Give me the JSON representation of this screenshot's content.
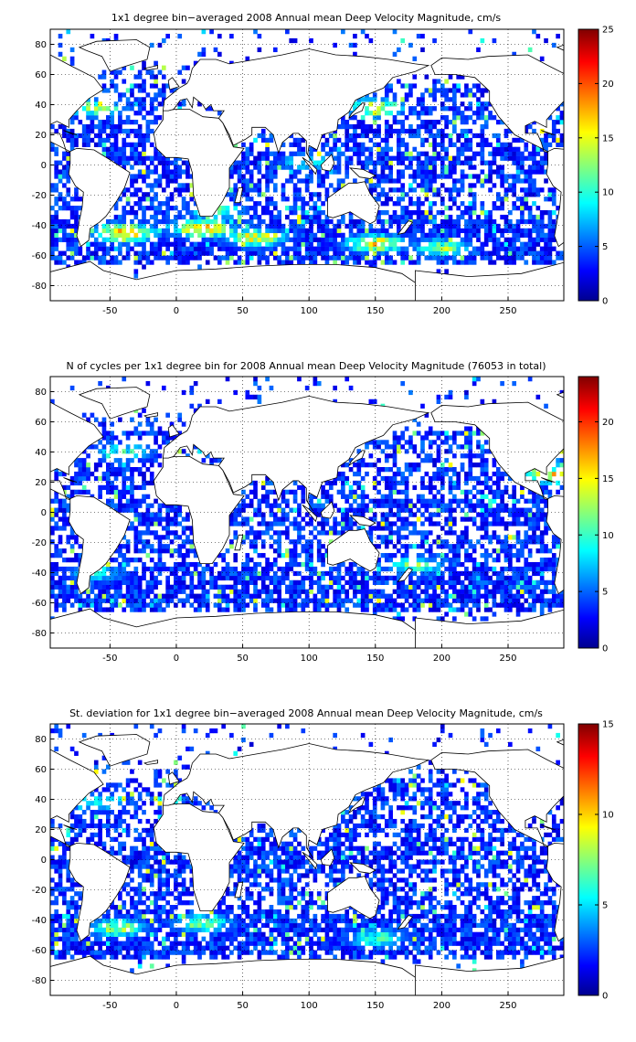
{
  "chart_data": [
    {
      "type": "heatmap",
      "title": "1x1 degree bin−averaged 2008 Annual mean Deep Velocity Magnitude, cm/s",
      "xlabel": "",
      "ylabel": "",
      "xlim": [
        -95,
        292
      ],
      "ylim": [
        -90,
        90
      ],
      "x_ticks": [
        -50,
        0,
        50,
        100,
        150,
        200,
        250
      ],
      "y_ticks": [
        80,
        60,
        40,
        20,
        0,
        -20,
        -40,
        -60,
        -80
      ],
      "grid": "dotted",
      "colorbar": {
        "min": 0,
        "max": 25,
        "ticks": [
          0,
          5,
          10,
          15,
          20,
          25
        ],
        "colormap": "jet",
        "placement": "right"
      },
      "features": [
        {
          "x": -40,
          "y": -45,
          "value": 22
        },
        {
          "x": 20,
          "y": -42,
          "value": 20
        },
        {
          "x": 60,
          "y": -48,
          "value": 17
        },
        {
          "x": 150,
          "y": -52,
          "value": 18
        },
        {
          "x": 200,
          "y": -55,
          "value": 14
        },
        {
          "x": -60,
          "y": 38,
          "value": 14
        },
        {
          "x": 150,
          "y": 38,
          "value": 17
        },
        {
          "x": 100,
          "y": 2,
          "value": 10
        },
        {
          "x": 30,
          "y": -30,
          "value": 12
        }
      ]
    },
    {
      "type": "heatmap",
      "title": "N of cycles per 1x1 degree bin for 2008 Annual mean Deep Velocity Magnitude (76053 in total)",
      "xlabel": "",
      "ylabel": "",
      "xlim": [
        -95,
        292
      ],
      "ylim": [
        -90,
        90
      ],
      "x_ticks": [
        -50,
        0,
        50,
        100,
        150,
        200,
        250
      ],
      "y_ticks": [
        80,
        60,
        40,
        20,
        0,
        -20,
        -40,
        -60,
        -80
      ],
      "grid": "dotted",
      "colorbar": {
        "min": 0,
        "max": 24,
        "ticks": [
          0,
          5,
          10,
          15,
          20
        ],
        "colormap": "jet",
        "placement": "right"
      },
      "features": [
        {
          "x": 270,
          "y": 30,
          "value": 15
        },
        {
          "x": 285,
          "y": 25,
          "value": 18
        },
        {
          "x": -40,
          "y": 40,
          "value": 10
        },
        {
          "x": 180,
          "y": -35,
          "value": 12
        },
        {
          "x": -60,
          "y": -40,
          "value": 9
        }
      ]
    },
    {
      "type": "heatmap",
      "title": "St. deviation for 1x1 degree bin−averaged 2008 Annual mean Deep Velocity Magnitude, cm/s",
      "xlabel": "",
      "ylabel": "",
      "xlim": [
        -95,
        292
      ],
      "ylim": [
        -90,
        90
      ],
      "x_ticks": [
        -50,
        0,
        50,
        100,
        150,
        200,
        250
      ],
      "y_ticks": [
        80,
        60,
        40,
        20,
        0,
        -20,
        -40,
        -60,
        -80
      ],
      "grid": "dotted",
      "colorbar": {
        "min": 0,
        "max": 15,
        "ticks": [
          0,
          5,
          10,
          15
        ],
        "colormap": "jet",
        "placement": "right"
      },
      "features": [
        {
          "x": -45,
          "y": -45,
          "value": 9
        },
        {
          "x": 20,
          "y": -42,
          "value": 8
        },
        {
          "x": 150,
          "y": -52,
          "value": 7
        },
        {
          "x": -60,
          "y": 38,
          "value": 6
        }
      ]
    }
  ]
}
